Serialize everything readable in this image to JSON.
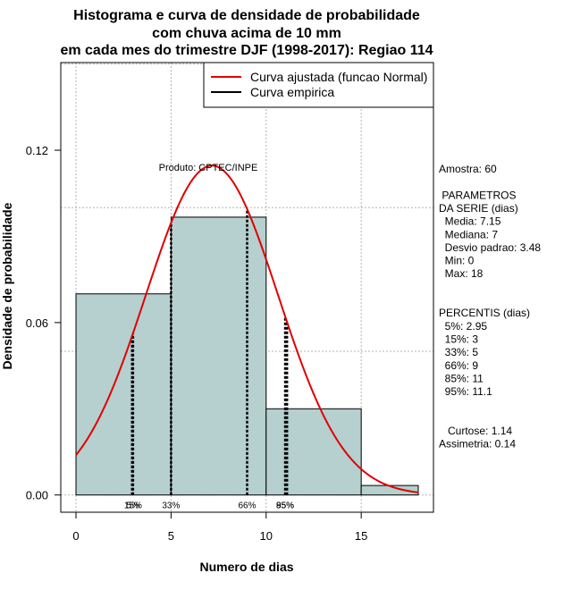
{
  "chart_data": {
    "type": "histogram",
    "title_lines": [
      "Histograma e curva de densidade de probabilidade",
      "com chuva acima de 10 mm",
      "em cada mes do trimestre DJF (1998-2017): Regiao 114"
    ],
    "xlabel": "Numero de dias",
    "ylabel": "Densidade de probabilidade",
    "xlim": [
      -0.8,
      18.8
    ],
    "ylim": [
      -0.006,
      0.1505
    ],
    "x_ticks": [
      0,
      5,
      10,
      15
    ],
    "y_ticks": [
      0.0,
      0.06,
      0.12
    ],
    "y_tick_labels": [
      "0.00",
      "0.06",
      "0.12"
    ],
    "grid_x": [
      0,
      5,
      10,
      15
    ],
    "grid_y": [
      0.0,
      0.05,
      0.1,
      0.15
    ],
    "bins": [
      {
        "start": 0,
        "end": 5,
        "density": 0.07
      },
      {
        "start": 5,
        "end": 10,
        "density": 0.0967
      },
      {
        "start": 10,
        "end": 15,
        "density": 0.03
      },
      {
        "start": 15,
        "end": 18,
        "density": 0.0033
      }
    ],
    "normal_fit": {
      "mean": 7.15,
      "sd": 3.48,
      "x_range": [
        0,
        18
      ]
    },
    "percentile_lines": [
      {
        "label": "5%",
        "x": 2.95
      },
      {
        "label": "15%",
        "x": 3
      },
      {
        "label": "33%",
        "x": 5
      },
      {
        "label": "66%",
        "x": 9
      },
      {
        "label": "85%",
        "x": 11
      },
      {
        "label": "95%",
        "x": 11.1
      }
    ],
    "percentile_tick_labels": [
      {
        "text": "15%",
        "x": 3
      },
      {
        "text": "5%",
        "x": 3
      },
      {
        "text": "33%",
        "x": 5
      },
      {
        "text": "66%",
        "x": 9
      },
      {
        "text": "85%",
        "x": 11
      },
      {
        "text": "95%",
        "x": 11
      }
    ],
    "legend": [
      {
        "label": "Curva ajustada (funcao Normal)",
        "color": "#e00000"
      },
      {
        "label": "Curva empirica",
        "color": "#000000"
      }
    ],
    "annotation": "Produto: CPTEC/INPE",
    "colors": {
      "bar_fill": "#b6cfcf",
      "bar_stroke": "#000000",
      "curve": "#e00000",
      "grid": "#b3b3b3"
    }
  },
  "stats_panel": [
    "Amostra: 60",
    "",
    " PARAMETROS",
    "DA SERIE (dias)",
    "  Media: 7.15",
    "  Mediana: 7",
    "  Desvio padrao: 3.48",
    "  Min: 0",
    "  Max: 18",
    "",
    "",
    "PERCENTIS (dias)",
    "  5%: 2.95",
    "  15%: 3",
    "  33%: 5",
    "  66%: 9",
    "  85%: 11",
    "  95%: 11.1",
    "",
    "",
    "   Curtose: 1.14",
    "Assimetria: 0.14"
  ]
}
